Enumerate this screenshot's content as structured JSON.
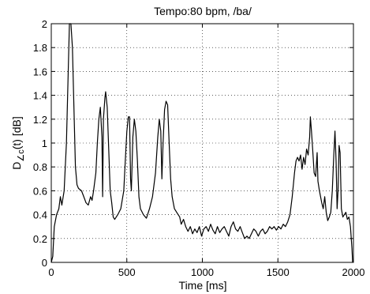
{
  "chart_data": {
    "type": "line",
    "title": "Tempo:80 bpm, /ba/",
    "xlabel": "Time [ms]",
    "ylabel": {
      "base": "D",
      "sub": "∠c",
      "suffix": "(t) [dB]"
    },
    "xlim": [
      0,
      2000
    ],
    "ylim": [
      0,
      2
    ],
    "xticks": [
      0,
      500,
      1000,
      1500,
      2000
    ],
    "yticks": [
      0,
      0.2,
      0.4,
      0.6,
      0.8,
      1,
      1.2,
      1.4,
      1.6,
      1.8,
      2
    ],
    "ytick_labels": [
      "0",
      "0.2",
      "0.4",
      "0.6",
      "0.8",
      "1",
      "1.2",
      "1.4",
      "1.6",
      "1.8",
      "2"
    ],
    "grid": true,
    "line_color": "#000000",
    "series": [
      {
        "values": [
          [
            0,
            0.0
          ],
          [
            10,
            0.05
          ],
          [
            20,
            0.3
          ],
          [
            35,
            0.4
          ],
          [
            50,
            0.45
          ],
          [
            60,
            0.55
          ],
          [
            70,
            0.48
          ],
          [
            85,
            0.6
          ],
          [
            100,
            1.0
          ],
          [
            110,
            1.5
          ],
          [
            120,
            2.0
          ],
          [
            130,
            2.0
          ],
          [
            140,
            1.8
          ],
          [
            150,
            1.3
          ],
          [
            160,
            0.8
          ],
          [
            170,
            0.65
          ],
          [
            180,
            0.62
          ],
          [
            200,
            0.6
          ],
          [
            215,
            0.55
          ],
          [
            230,
            0.5
          ],
          [
            245,
            0.48
          ],
          [
            260,
            0.55
          ],
          [
            270,
            0.52
          ],
          [
            280,
            0.6
          ],
          [
            295,
            0.75
          ],
          [
            305,
            1.0
          ],
          [
            315,
            1.2
          ],
          [
            325,
            1.3
          ],
          [
            335,
            1.05
          ],
          [
            340,
            0.55
          ],
          [
            345,
            1.2
          ],
          [
            355,
            1.38
          ],
          [
            360,
            1.43
          ],
          [
            370,
            1.3
          ],
          [
            380,
            0.95
          ],
          [
            390,
            0.6
          ],
          [
            400,
            0.5
          ],
          [
            410,
            0.38
          ],
          [
            420,
            0.36
          ],
          [
            440,
            0.4
          ],
          [
            460,
            0.45
          ],
          [
            480,
            0.6
          ],
          [
            490,
            0.85
          ],
          [
            500,
            1.1
          ],
          [
            510,
            1.22
          ],
          [
            518,
            1.22
          ],
          [
            525,
            0.7
          ],
          [
            530,
            0.6
          ],
          [
            540,
            1.05
          ],
          [
            550,
            1.2
          ],
          [
            560,
            1.1
          ],
          [
            570,
            0.85
          ],
          [
            580,
            0.55
          ],
          [
            590,
            0.45
          ],
          [
            610,
            0.4
          ],
          [
            630,
            0.37
          ],
          [
            650,
            0.45
          ],
          [
            670,
            0.55
          ],
          [
            690,
            0.75
          ],
          [
            705,
            1.05
          ],
          [
            715,
            1.2
          ],
          [
            725,
            1.1
          ],
          [
            732,
            0.7
          ],
          [
            740,
            1.0
          ],
          [
            750,
            1.28
          ],
          [
            760,
            1.35
          ],
          [
            770,
            1.32
          ],
          [
            780,
            1.0
          ],
          [
            790,
            0.7
          ],
          [
            800,
            0.55
          ],
          [
            815,
            0.45
          ],
          [
            830,
            0.42
          ],
          [
            850,
            0.38
          ],
          [
            860,
            0.32
          ],
          [
            875,
            0.36
          ],
          [
            890,
            0.3
          ],
          [
            905,
            0.26
          ],
          [
            920,
            0.3
          ],
          [
            935,
            0.24
          ],
          [
            950,
            0.28
          ],
          [
            965,
            0.25
          ],
          [
            980,
            0.3
          ],
          [
            995,
            0.22
          ],
          [
            1010,
            0.28
          ],
          [
            1025,
            0.3
          ],
          [
            1040,
            0.26
          ],
          [
            1055,
            0.32
          ],
          [
            1070,
            0.27
          ],
          [
            1085,
            0.24
          ],
          [
            1100,
            0.3
          ],
          [
            1115,
            0.25
          ],
          [
            1130,
            0.28
          ],
          [
            1145,
            0.3
          ],
          [
            1160,
            0.26
          ],
          [
            1175,
            0.22
          ],
          [
            1190,
            0.3
          ],
          [
            1205,
            0.34
          ],
          [
            1220,
            0.28
          ],
          [
            1235,
            0.26
          ],
          [
            1250,
            0.3
          ],
          [
            1265,
            0.25
          ],
          [
            1280,
            0.2
          ],
          [
            1295,
            0.22
          ],
          [
            1310,
            0.2
          ],
          [
            1325,
            0.24
          ],
          [
            1340,
            0.28
          ],
          [
            1355,
            0.26
          ],
          [
            1370,
            0.22
          ],
          [
            1385,
            0.26
          ],
          [
            1400,
            0.28
          ],
          [
            1415,
            0.24
          ],
          [
            1430,
            0.26
          ],
          [
            1445,
            0.3
          ],
          [
            1460,
            0.28
          ],
          [
            1475,
            0.3
          ],
          [
            1490,
            0.27
          ],
          [
            1505,
            0.3
          ],
          [
            1520,
            0.28
          ],
          [
            1535,
            0.32
          ],
          [
            1550,
            0.3
          ],
          [
            1565,
            0.34
          ],
          [
            1580,
            0.4
          ],
          [
            1595,
            0.55
          ],
          [
            1610,
            0.75
          ],
          [
            1620,
            0.85
          ],
          [
            1630,
            0.88
          ],
          [
            1640,
            0.85
          ],
          [
            1650,
            0.9
          ],
          [
            1660,
            0.78
          ],
          [
            1670,
            0.88
          ],
          [
            1680,
            0.82
          ],
          [
            1690,
            0.95
          ],
          [
            1700,
            0.9
          ],
          [
            1710,
            1.05
          ],
          [
            1715,
            1.22
          ],
          [
            1722,
            1.1
          ],
          [
            1730,
            0.95
          ],
          [
            1740,
            0.75
          ],
          [
            1750,
            0.72
          ],
          [
            1760,
            0.92
          ],
          [
            1765,
            0.68
          ],
          [
            1775,
            0.6
          ],
          [
            1790,
            0.5
          ],
          [
            1800,
            0.45
          ],
          [
            1810,
            0.55
          ],
          [
            1820,
            0.42
          ],
          [
            1830,
            0.35
          ],
          [
            1840,
            0.38
          ],
          [
            1850,
            0.42
          ],
          [
            1860,
            0.6
          ],
          [
            1870,
            0.9
          ],
          [
            1878,
            1.1
          ],
          [
            1885,
            0.85
          ],
          [
            1892,
            0.45
          ],
          [
            1898,
            0.6
          ],
          [
            1905,
            0.98
          ],
          [
            1912,
            0.92
          ],
          [
            1920,
            0.45
          ],
          [
            1930,
            0.38
          ],
          [
            1940,
            0.4
          ],
          [
            1950,
            0.42
          ],
          [
            1960,
            0.36
          ],
          [
            1970,
            0.38
          ],
          [
            1980,
            0.3
          ],
          [
            1990,
            0.12
          ],
          [
            1995,
            0.0
          ]
        ]
      }
    ]
  }
}
